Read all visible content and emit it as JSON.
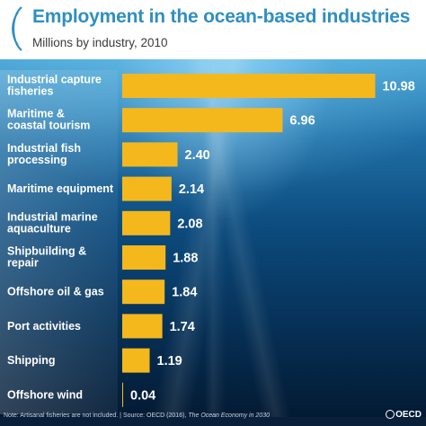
{
  "header": {
    "title": "Employment in the ocean-based industries",
    "subtitle": "Millions by industry, 2010"
  },
  "colors": {
    "title": "#2f8fc2",
    "bar": "#f4b81c",
    "label": "#ffffff"
  },
  "chart_data": {
    "type": "bar",
    "orientation": "horizontal",
    "title": "Employment in the ocean-based industries",
    "subtitle": "Millions by industry, 2010",
    "categories": [
      [
        "Industrial capture",
        "fisheries"
      ],
      [
        "Maritime &",
        "coastal tourism"
      ],
      [
        "Industrial fish",
        "processing"
      ],
      [
        "Maritime equipment"
      ],
      [
        "Industrial marine",
        "aquaculture"
      ],
      [
        "Shipbuilding &",
        "repair"
      ],
      [
        "Offshore oil & gas"
      ],
      [
        "Port activities"
      ],
      [
        "Shipping"
      ],
      [
        "Offshore wind"
      ]
    ],
    "values": [
      10.98,
      6.96,
      2.4,
      2.14,
      2.08,
      1.88,
      1.84,
      1.74,
      1.19,
      0.04
    ],
    "value_labels": [
      "10.98",
      "6.96",
      "2.40",
      "2.14",
      "2.08",
      "1.88",
      "1.84",
      "1.74",
      "1.19",
      "0.04"
    ],
    "xlim": [
      0,
      11
    ],
    "grid": false,
    "legend": "none"
  },
  "footer": {
    "note_prefix": "Note: Artisanal fisheries are not included. | Source: OECD (2016), ",
    "note_pub": "The Ocean Economy in 2030",
    "logo_text": "OECD"
  }
}
